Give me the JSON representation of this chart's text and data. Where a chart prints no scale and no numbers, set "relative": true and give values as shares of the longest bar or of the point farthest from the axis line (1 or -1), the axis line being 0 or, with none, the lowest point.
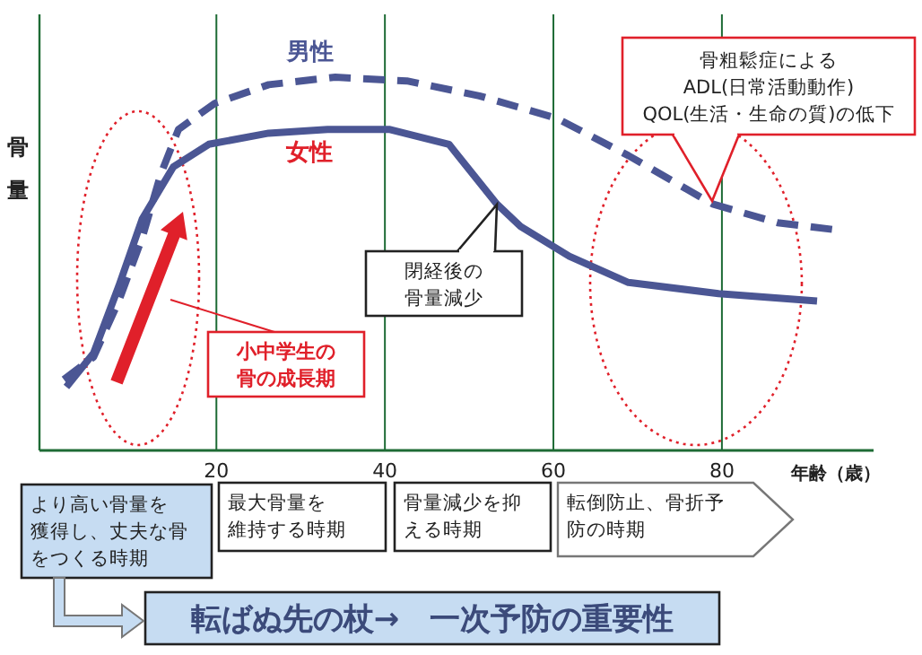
{
  "chart_data": {
    "type": "line",
    "relative": true,
    "xlim": [
      -1,
      98
    ],
    "xticks": [
      20,
      40,
      60,
      80
    ],
    "grid": "x",
    "ylabel": "骨量",
    "xlabel": "年齢（歳）",
    "marker": "none",
    "series": [
      {
        "name": "男性",
        "color": "#4b5694",
        "line_style": "dashed",
        "x": [
          1.9,
          5.4,
          8.4,
          11.2,
          13.4,
          15.5,
          19.8,
          26.2,
          34.1,
          42.6,
          51.2,
          60.4,
          68.9,
          78.9,
          86.6,
          93.9
        ],
        "values": [
          0.19,
          0.25,
          0.4,
          0.57,
          0.74,
          0.86,
          0.93,
          0.98,
          1.0,
          0.99,
          0.95,
          0.89,
          0.79,
          0.66,
          0.61,
          0.59
        ]
      },
      {
        "name": "女性",
        "color": "#4b5694",
        "line_style": "solid",
        "x": [
          2.2,
          5.4,
          8.4,
          11.2,
          14.9,
          19.1,
          26.2,
          33.2,
          40.5,
          47.6,
          53.3,
          56.1,
          61.9,
          68.9,
          79.6,
          91.3
        ],
        "values": [
          0.17,
          0.26,
          0.44,
          0.62,
          0.76,
          0.82,
          0.85,
          0.86,
          0.86,
          0.82,
          0.66,
          0.6,
          0.52,
          0.45,
          0.42,
          0.4
        ]
      }
    ],
    "annotations": [
      "骨粗鬆症によるADL(日常活動動作)QOL(生活・生命の質)の低下",
      "閉経後の骨量減少",
      "小中学生の骨の成長期",
      "より高い骨量を獲得し、丈夫な骨をつくる時期",
      "最大骨量を維持する時期",
      "骨量減少を抑える時期",
      "転倒防止、骨折予防の時期",
      "転ばぬ先の杖→　一次予防の重要性"
    ]
  }
}
